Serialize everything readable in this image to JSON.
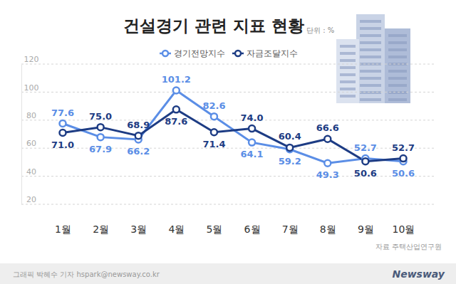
{
  "chart_data": {
    "type": "line",
    "title": "건설경기 관련 지표 현황",
    "y_label": "단위 : %",
    "annotations": [
      "자료 주택산업연구원",
      "그래픽 박혜수 기자 hspark@newsway.co.kr",
      "Newsway"
    ],
    "categories": [
      "1월",
      "2월",
      "3월",
      "4월",
      "5월",
      "6월",
      "7월",
      "8월",
      "9월",
      "10월"
    ],
    "series": [
      {
        "name": "경기전망지수",
        "color": "#5b8ee6",
        "marker": "circle",
        "values": [
          77.6,
          67.9,
          66.2,
          101.2,
          82.6,
          64.1,
          59.2,
          49.3,
          52.7,
          50.6
        ],
        "value_labels": [
          "77.6",
          "67.9",
          "66.2",
          "101.2",
          "82.6",
          "64.1",
          "59.2",
          "49.3",
          "52.7",
          "50.6"
        ]
      },
      {
        "name": "자금조달지수",
        "color": "#1d3c84",
        "marker": "circle",
        "values": [
          71.0,
          75.0,
          68.9,
          87.6,
          71.4,
          74.0,
          60.4,
          66.6,
          50.6,
          52.7
        ],
        "value_labels": [
          "71.0",
          "75.0",
          "68.9",
          "87.6",
          "71.4",
          "74.0",
          "60.4",
          "66.6",
          "50.6",
          "52.7"
        ]
      }
    ],
    "ylim": [
      20,
      120
    ],
    "yticks": [
      20,
      40,
      60,
      80,
      100,
      120
    ],
    "grid": true,
    "legend": "top",
    "data_labels": true
  }
}
